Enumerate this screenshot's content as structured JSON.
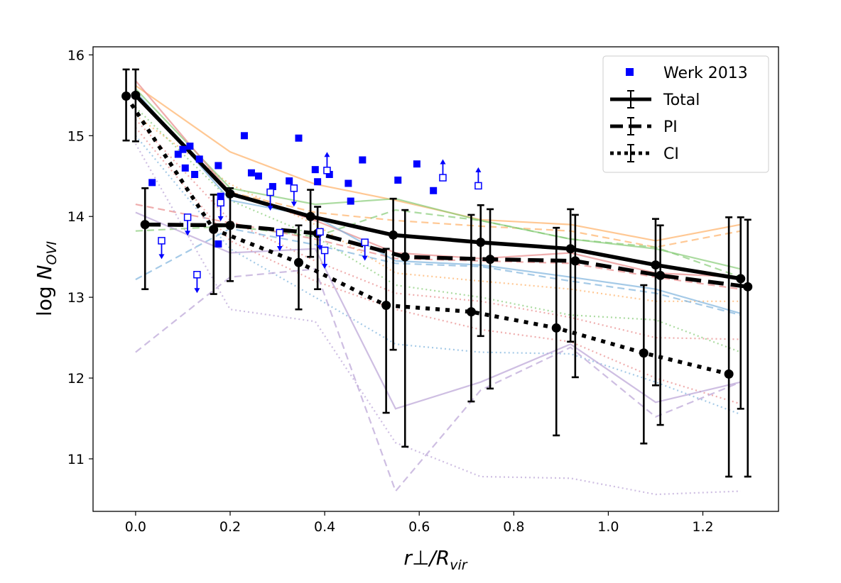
{
  "chart_data": {
    "type": "line",
    "title": "",
    "xlabel": "r⊥/Rvir",
    "ylabel": "log N_OVI",
    "xlim": [
      -0.09,
      1.36
    ],
    "ylim": [
      10.35,
      16.1
    ],
    "xticks": [
      0.0,
      0.2,
      0.4,
      0.6,
      0.8,
      1.0,
      1.2
    ],
    "xtick_labels": [
      "0.0",
      "0.2",
      "0.4",
      "0.6",
      "0.8",
      "1.0",
      "1.2"
    ],
    "yticks": [
      11,
      12,
      13,
      14,
      15,
      16
    ],
    "ytick_labels": [
      "11",
      "12",
      "13",
      "14",
      "15",
      "16"
    ],
    "grid": false,
    "legend_position": "top-right",
    "legend": [
      {
        "label": "Werk 2013",
        "style": "square",
        "color": "#0000ff"
      },
      {
        "label": "Total",
        "style": "solid",
        "color": "#000000"
      },
      {
        "label": "PI",
        "style": "dashed",
        "color": "#000000"
      },
      {
        "label": "CI",
        "style": "dotted",
        "color": "#000000"
      }
    ],
    "main_series": [
      {
        "name": "Total",
        "style": "solid",
        "x": [
          0.0,
          0.2,
          0.38,
          0.55,
          0.73,
          0.92,
          1.1,
          1.28
        ],
        "x_plot": [
          0.0,
          0.2,
          0.37,
          0.545,
          0.73,
          0.92,
          1.1,
          1.28
        ],
        "y": [
          15.5,
          14.28,
          14.0,
          13.77,
          13.68,
          13.6,
          13.4,
          13.23
        ],
        "yerr_lo": [
          0.57,
          0.0,
          0.5,
          1.42,
          1.16,
          1.15,
          1.49,
          1.61
        ],
        "yerr_hi": [
          0.32,
          0.0,
          0.33,
          0.45,
          0.46,
          0.49,
          0.57,
          0.76
        ]
      },
      {
        "name": "PI",
        "style": "dashed",
        "x": [
          0.02,
          0.2,
          0.385,
          0.57,
          0.75,
          0.93,
          1.11,
          1.295
        ],
        "y": [
          13.9,
          13.89,
          13.79,
          13.5,
          13.47,
          13.45,
          13.27,
          13.13
        ],
        "yerr_lo": [
          0.8,
          0.69,
          0.69,
          2.35,
          1.6,
          1.44,
          1.85,
          2.35
        ],
        "yerr_hi": [
          0.45,
          0.46,
          0.33,
          0.58,
          0.62,
          0.57,
          0.62,
          0.83
        ]
      },
      {
        "name": "CI",
        "style": "dotted",
        "x": [
          -0.02,
          0.165,
          0.345,
          0.53,
          0.71,
          0.89,
          1.075,
          1.255
        ],
        "y": [
          15.49,
          13.84,
          13.43,
          12.9,
          12.82,
          12.62,
          12.31,
          12.05
        ],
        "yerr_lo": [
          0.55,
          0.8,
          0.58,
          1.33,
          1.11,
          1.33,
          1.12,
          1.27
        ],
        "yerr_hi": [
          0.33,
          0.43,
          0.46,
          0.7,
          1.2,
          1.24,
          0.84,
          1.94
        ]
      }
    ],
    "werk_2013": {
      "detections": [
        {
          "x": 0.035,
          "y": 14.42
        },
        {
          "x": 0.09,
          "y": 14.77
        },
        {
          "x": 0.1,
          "y": 14.83
        },
        {
          "x": 0.115,
          "y": 14.87
        },
        {
          "x": 0.105,
          "y": 14.6
        },
        {
          "x": 0.125,
          "y": 14.52
        },
        {
          "x": 0.135,
          "y": 14.71
        },
        {
          "x": 0.175,
          "y": 14.63
        },
        {
          "x": 0.18,
          "y": 14.25
        },
        {
          "x": 0.175,
          "y": 13.66
        },
        {
          "x": 0.23,
          "y": 15.0
        },
        {
          "x": 0.245,
          "y": 14.54
        },
        {
          "x": 0.26,
          "y": 14.5
        },
        {
          "x": 0.29,
          "y": 14.37
        },
        {
          "x": 0.325,
          "y": 14.44
        },
        {
          "x": 0.345,
          "y": 14.97
        },
        {
          "x": 0.38,
          "y": 14.58
        },
        {
          "x": 0.385,
          "y": 14.43
        },
        {
          "x": 0.41,
          "y": 14.52
        },
        {
          "x": 0.45,
          "y": 14.41
        },
        {
          "x": 0.455,
          "y": 14.19
        },
        {
          "x": 0.48,
          "y": 14.7
        },
        {
          "x": 0.555,
          "y": 14.45
        },
        {
          "x": 0.595,
          "y": 14.65
        },
        {
          "x": 0.63,
          "y": 14.32
        }
      ],
      "upper_limits": [
        {
          "x": 0.055,
          "y": 13.7
        },
        {
          "x": 0.11,
          "y": 13.99
        },
        {
          "x": 0.13,
          "y": 13.28
        },
        {
          "x": 0.18,
          "y": 14.17
        },
        {
          "x": 0.285,
          "y": 14.3
        },
        {
          "x": 0.305,
          "y": 13.8
        },
        {
          "x": 0.335,
          "y": 14.35
        },
        {
          "x": 0.39,
          "y": 13.81
        },
        {
          "x": 0.4,
          "y": 13.58
        },
        {
          "x": 0.485,
          "y": 13.68
        }
      ],
      "lower_limits": [
        {
          "x": 0.405,
          "y": 14.57
        },
        {
          "x": 0.65,
          "y": 14.48
        },
        {
          "x": 0.725,
          "y": 14.38
        }
      ]
    },
    "faint_series": [
      {
        "color": "#ffb066",
        "style": "solid",
        "x": [
          0.0,
          0.2,
          0.38,
          0.55,
          0.73,
          0.92,
          1.1,
          1.28
        ],
        "y": [
          15.62,
          14.8,
          14.4,
          14.2,
          13.96,
          13.9,
          13.7,
          13.9
        ]
      },
      {
        "color": "#ffb066",
        "style": "dashed",
        "x": [
          0.0,
          0.2,
          0.38,
          0.55,
          0.73,
          0.92,
          1.1,
          1.28
        ],
        "y": [
          15.5,
          14.3,
          14.05,
          13.95,
          13.88,
          13.82,
          13.62,
          13.82
        ]
      },
      {
        "color": "#ffb066",
        "style": "dotted",
        "x": [
          0.0,
          0.2,
          0.38,
          0.55,
          0.73,
          0.92,
          1.1,
          1.28
        ],
        "y": [
          15.25,
          14.4,
          13.9,
          13.3,
          13.2,
          13.1,
          12.95,
          12.95
        ]
      },
      {
        "color": "#88cc77",
        "style": "solid",
        "x": [
          0.0,
          0.2,
          0.38,
          0.55,
          0.73,
          0.92,
          1.1,
          1.28
        ],
        "y": [
          15.58,
          14.35,
          14.15,
          14.22,
          13.95,
          13.72,
          13.6,
          13.35
        ]
      },
      {
        "color": "#88cc77",
        "style": "dashed",
        "x": [
          0.0,
          0.2,
          0.38,
          0.55,
          0.73,
          0.92,
          1.1,
          1.28
        ],
        "y": [
          13.82,
          13.88,
          13.75,
          14.08,
          13.95,
          13.72,
          13.62,
          13.25
        ]
      },
      {
        "color": "#88cc77",
        "style": "dotted",
        "x": [
          0.0,
          0.2,
          0.38,
          0.55,
          0.73,
          0.92,
          1.1,
          1.28
        ],
        "y": [
          15.35,
          14.2,
          13.75,
          13.15,
          13.0,
          12.78,
          12.72,
          12.32
        ]
      },
      {
        "color": "#e88a8a",
        "style": "solid",
        "x": [
          0.0,
          0.2,
          0.38,
          0.55,
          0.73,
          0.92,
          1.1,
          1.28
        ],
        "y": [
          15.68,
          14.3,
          13.95,
          13.55,
          13.48,
          13.55,
          13.3,
          13.25
        ]
      },
      {
        "color": "#e88a8a",
        "style": "dashed",
        "x": [
          0.0,
          0.2,
          0.38,
          0.55,
          0.73,
          0.92,
          1.1,
          1.28
        ],
        "y": [
          14.15,
          13.92,
          13.72,
          13.48,
          13.45,
          13.42,
          13.25,
          13.1
        ]
      },
      {
        "color": "#e88a8a",
        "style": "dotted",
        "x": [
          0.0,
          0.2,
          0.38,
          0.55,
          0.73,
          0.92,
          1.1,
          1.28
        ],
        "y": [
          15.2,
          13.95,
          13.45,
          13.05,
          12.95,
          12.75,
          12.5,
          12.48
        ]
      },
      {
        "color": "#e88a8a",
        "style": "dotted",
        "x": [
          0.0,
          0.2,
          0.38,
          0.55,
          0.73,
          0.92,
          1.1,
          1.28
        ],
        "y": [
          15.1,
          13.7,
          13.2,
          12.85,
          12.6,
          12.45,
          12.0,
          11.68
        ]
      },
      {
        "color": "#7fb3dd",
        "style": "solid",
        "x": [
          0.0,
          0.2,
          0.38,
          0.55,
          0.73,
          0.92,
          1.1,
          1.28
        ],
        "y": [
          15.55,
          14.2,
          14.0,
          13.45,
          13.4,
          13.25,
          13.1,
          12.8
        ]
      },
      {
        "color": "#7fb3dd",
        "style": "dashed",
        "x": [
          0.0,
          0.2,
          0.38,
          0.55,
          0.73,
          0.92,
          1.1,
          1.28
        ],
        "y": [
          13.22,
          13.85,
          13.65,
          13.42,
          13.38,
          13.2,
          13.05,
          12.78
        ]
      },
      {
        "color": "#7fb3dd",
        "style": "dotted",
        "x": [
          0.0,
          0.2,
          0.38,
          0.55,
          0.73,
          0.92,
          1.1,
          1.28
        ],
        "y": [
          15.0,
          13.6,
          13.0,
          12.42,
          12.32,
          12.3,
          11.95,
          11.55
        ]
      },
      {
        "color": "#b9a3d6",
        "style": "solid",
        "x": [
          0.0,
          0.2,
          0.38,
          0.55,
          0.73,
          0.92,
          1.1,
          1.28
        ],
        "y": [
          14.05,
          13.55,
          13.6,
          11.62,
          11.95,
          12.42,
          11.7,
          11.95
        ]
      },
      {
        "color": "#b9a3d6",
        "style": "dashed",
        "x": [
          0.0,
          0.2,
          0.38,
          0.55,
          0.73,
          0.92,
          1.1,
          1.28
        ],
        "y": [
          12.32,
          13.25,
          13.35,
          10.6,
          11.85,
          12.38,
          11.52,
          11.95
        ]
      },
      {
        "color": "#b9a3d6",
        "style": "dotted",
        "x": [
          0.0,
          0.2,
          0.38,
          0.55,
          0.73,
          0.92,
          1.1,
          1.28
        ],
        "y": [
          14.9,
          12.85,
          12.7,
          11.2,
          10.78,
          10.76,
          10.56,
          10.6
        ]
      }
    ]
  }
}
